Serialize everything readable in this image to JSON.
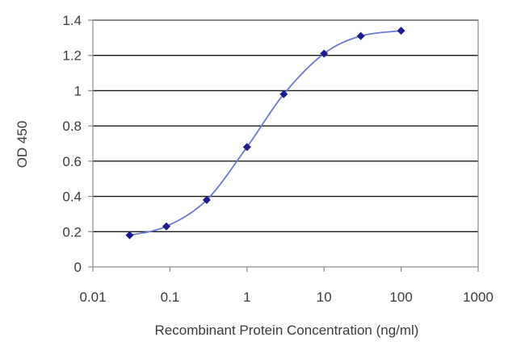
{
  "chart_data": {
    "type": "line",
    "title": "",
    "xlabel": "Recombinant Protein Concentration (ng/ml)",
    "ylabel": "OD 450",
    "x_scale": "log",
    "xlim": [
      0.01,
      1000
    ],
    "ylim": [
      0,
      1.4
    ],
    "x_ticks": [
      0.01,
      0.1,
      1,
      10,
      100,
      1000
    ],
    "x_tick_labels": [
      "0.01",
      "0.1",
      "1",
      "10",
      "100",
      "1000"
    ],
    "y_ticks": [
      0,
      0.2,
      0.4,
      0.6,
      0.8,
      1,
      1.2,
      1.4
    ],
    "y_tick_labels": [
      "0",
      "0.2",
      "0.4",
      "0.6",
      "0.8",
      "1",
      "1.2",
      "1.4"
    ],
    "grid": "horizontal",
    "legend": "none",
    "series": [
      {
        "x": [
          0.03,
          0.09,
          0.3,
          1,
          3,
          10,
          30,
          100
        ],
        "y": [
          0.18,
          0.23,
          0.38,
          0.68,
          0.98,
          1.21,
          1.31,
          1.34
        ]
      }
    ],
    "colors": {
      "line": "#6a78d8",
      "marker": "#1c1c8a",
      "grid": "#1a1a1a",
      "frame": "#8a8a8a",
      "tick_text": "#3a3a3a"
    }
  }
}
